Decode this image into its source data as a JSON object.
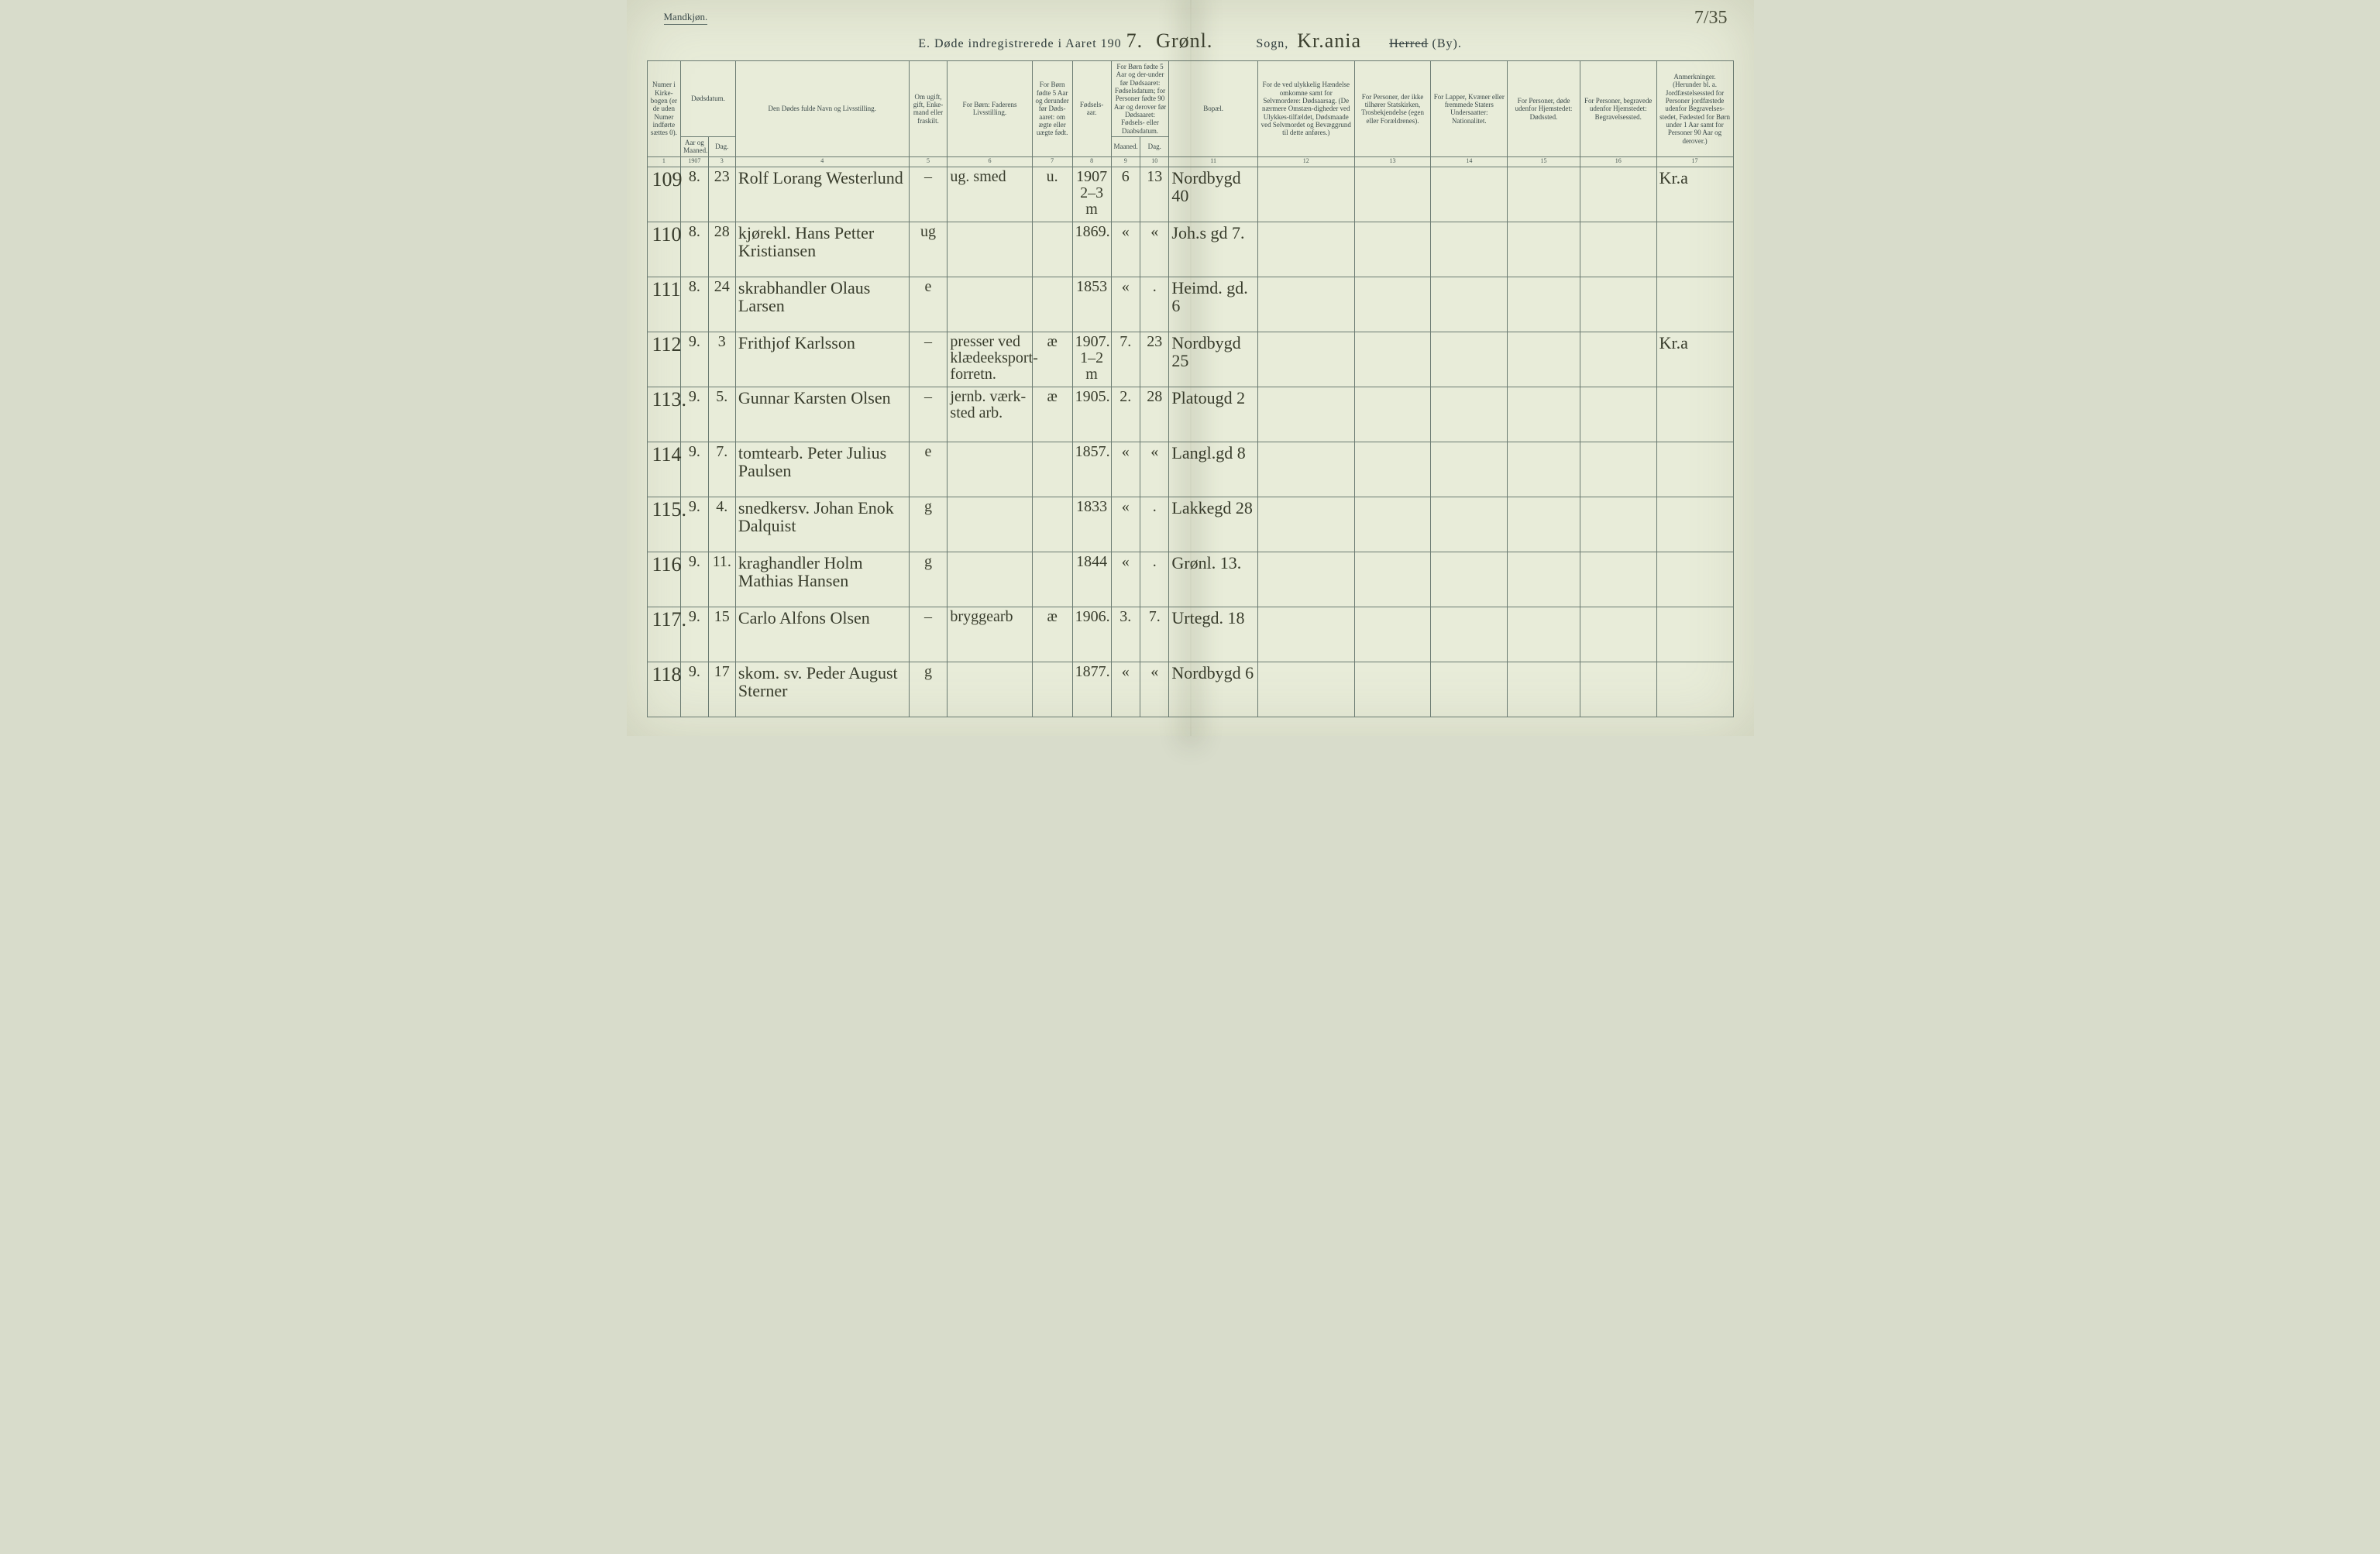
{
  "header": {
    "gender": "Mandkjøn.",
    "page_number_hand": "7/35",
    "title_prefix": "E.   Døde indregistrerede i Aaret 190",
    "year_suffix_hand": "7.",
    "parish_hand": "Grønl.",
    "sogn_label": "Sogn,",
    "district_hand": "Kr.ania",
    "herred_label": "Herred",
    "by_label": "(By)."
  },
  "columns": {
    "c1": "Numer i Kirke-bogen (er de uden Numer indførte sættes 0).",
    "c2_group": "Dødsdatum.",
    "c2": "Aar og Maaned.",
    "c3": "Dag.",
    "c4": "Den Dødes fulde Navn og Livsstilling.",
    "c5": "Om ugift, gift, Enke-mand eller fraskilt.",
    "c6": "For Børn:\nFaderens Livsstilling.",
    "c7": "For Børn fødte 5 Aar og derunder før Døds-aaret: om ægte eller uægte født.",
    "c8": "Fødsels-aar.",
    "c9_10_group": "For Børn fødte 5 Aar og der-under før Dødsaaret: Fødselsdatum; for Personer fødte 90 Aar og derover før Dødsaaret: Fødsels- eller Daabsdatum.",
    "c9": "Maaned.",
    "c10": "Dag.",
    "c11": "Bopæl.",
    "c12": "For de ved ulykkelig Hændelse omkomne samt for Selvmordere: Dødsaarsag. (De nærmere Omstæn-digheder ved Ulykkes-tilfældet, Dødsmaade ved Selvmordet og Bevæggrund til dette anføres.)",
    "c13": "For Personer, der ikke tilhører Statskirken, Trosbekjendelse (egen eller Forældrenes).",
    "c14": "For Lapper, Kvæner eller fremmede Staters Undersaatter: Nationalitet.",
    "c15": "For Personer, døde udenfor Hjemstedet: Dødssted.",
    "c16": "For Personer, begravede udenfor Hjemstedet: Begravelsessted.",
    "c17": "Anmerkninger. (Herunder bl. a. Jordfæstelsessted for Personer jordfæstede udenfor Begravelses-stedet, Fødested for Børn under 1 Aar samt for Personer 90 Aar og derover.)"
  },
  "colnums": [
    "1",
    "",
    "3",
    "4",
    "5",
    "6",
    "7",
    "8",
    "9",
    "10",
    "11",
    "12",
    "13",
    "14",
    "15",
    "16",
    "17"
  ],
  "year_in_col2": "1907",
  "rows": [
    {
      "n": "109",
      "m": "8.",
      "d": "23",
      "name": "Rolf Lorang Westerlund",
      "status": "–",
      "father": "ug. smed",
      "legit": "u.",
      "year": "1907\n2–3 m",
      "bm": "6",
      "bd": "13",
      "addr": "Nordbygd 40",
      "note": "Kr.a"
    },
    {
      "n": "110",
      "m": "8.",
      "d": "28",
      "name": "kjørekl. Hans Petter Kristiansen",
      "status": "ug",
      "father": "",
      "legit": "",
      "year": "1869.",
      "bm": "«",
      "bd": "«",
      "addr": "Joh.s gd 7.",
      "note": ""
    },
    {
      "n": "111",
      "m": "8.",
      "d": "24",
      "name": "skrabhandler Olaus Larsen",
      "status": "e",
      "father": "",
      "legit": "",
      "year": "1853",
      "bm": "«",
      "bd": ".",
      "addr": "Heimd. gd. 6",
      "note": ""
    },
    {
      "n": "112",
      "m": "9.",
      "d": "3",
      "name": "Frithjof Karlsson",
      "status": "–",
      "father": "presser ved klædeeksport-forretn.",
      "legit": "æ",
      "year": "1907.\n1–2 m",
      "bm": "7.",
      "bd": "23",
      "addr": "Nordbygd 25",
      "note": "Kr.a"
    },
    {
      "n": "113.",
      "m": "9.",
      "d": "5.",
      "name": "Gunnar Karsten Olsen",
      "status": "–",
      "father": "jernb. værk-sted arb.",
      "legit": "æ",
      "year": "1905.",
      "bm": "2.",
      "bd": "28",
      "addr": "Platougd 2",
      "note": ""
    },
    {
      "n": "114",
      "m": "9.",
      "d": "7.",
      "name": "tomtearb. Peter Julius Paulsen",
      "status": "e",
      "father": "",
      "legit": "",
      "year": "1857.",
      "bm": "«",
      "bd": "«",
      "addr": "Langl.gd 8",
      "note": ""
    },
    {
      "n": "115.",
      "m": "9.",
      "d": "4.",
      "name": "snedkersv. Johan Enok Dalquist",
      "status": "g",
      "father": "",
      "legit": "",
      "year": "1833",
      "bm": "«",
      "bd": ".",
      "addr": "Lakkegd 28",
      "note": ""
    },
    {
      "n": "116",
      "m": "9.",
      "d": "11.",
      "name": "kraghandler Holm Mathias Hansen",
      "status": "g",
      "father": "",
      "legit": "",
      "year": "1844",
      "bm": "«",
      "bd": ".",
      "addr": "Grønl. 13.",
      "note": ""
    },
    {
      "n": "117.",
      "m": "9.",
      "d": "15",
      "name": "Carlo Alfons Olsen",
      "status": "–",
      "father": "bryggearb",
      "legit": "æ",
      "year": "1906.",
      "bm": "3.",
      "bd": "7.",
      "addr": "Urtegd. 18",
      "note": ""
    },
    {
      "n": "118",
      "m": "9.",
      "d": "17",
      "name": "skom. sv. Peder August Sterner",
      "status": "g",
      "father": "",
      "legit": "",
      "year": "1877.",
      "bm": "«",
      "bd": "«",
      "addr": "Nordbygd 6",
      "note": ""
    }
  ]
}
